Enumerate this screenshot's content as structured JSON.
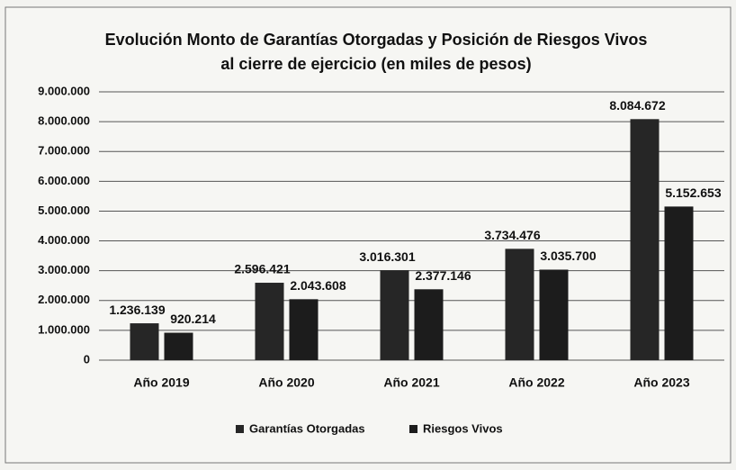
{
  "chart_data": {
    "type": "bar",
    "title": "Evolución Monto de Garantías Otorgadas y Posición de Riesgos Vivos",
    "subtitle": "al cierre de ejercicio (en miles de pesos)",
    "categories": [
      "Año 2019",
      "Año 2020",
      "Año 2021",
      "Año 2022",
      "Año 2023"
    ],
    "series": [
      {
        "name": "Garantías Otorgadas",
        "color": "#262626",
        "values": [
          1236139,
          2596421,
          3016301,
          3734476,
          8084672
        ],
        "value_labels": [
          "1.236.139",
          "2.596.421",
          "3.016.301",
          "3.734.476",
          "8.084.672"
        ]
      },
      {
        "name": "Riesgos Vivos",
        "color": "#1c1c1c",
        "values": [
          920214,
          2043608,
          2377146,
          3035700,
          5152653
        ],
        "value_labels": [
          "920.214",
          "2.043.608",
          "2.377.146",
          "3.035.700",
          "5.152.653"
        ]
      }
    ],
    "ylim": [
      0,
      9000000
    ],
    "yticks": [
      0,
      {
        "value": 1000000,
        "label": "1.000.000"
      },
      {
        "value": 2000000,
        "label": "2.000.000"
      },
      {
        "value": 3000000,
        "label": "3.000.000"
      },
      {
        "value": 4000000,
        "label": "4.000.000"
      },
      {
        "value": 5000000,
        "label": "5.000.000"
      },
      {
        "value": 6000000,
        "label": "6.000.000"
      },
      {
        "value": 7000000,
        "label": "7.000.000"
      },
      {
        "value": 8000000,
        "label": "8.000.000"
      },
      {
        "value": 9000000,
        "label": "9.000.000"
      }
    ],
    "grid": true,
    "legend": "bottom"
  }
}
